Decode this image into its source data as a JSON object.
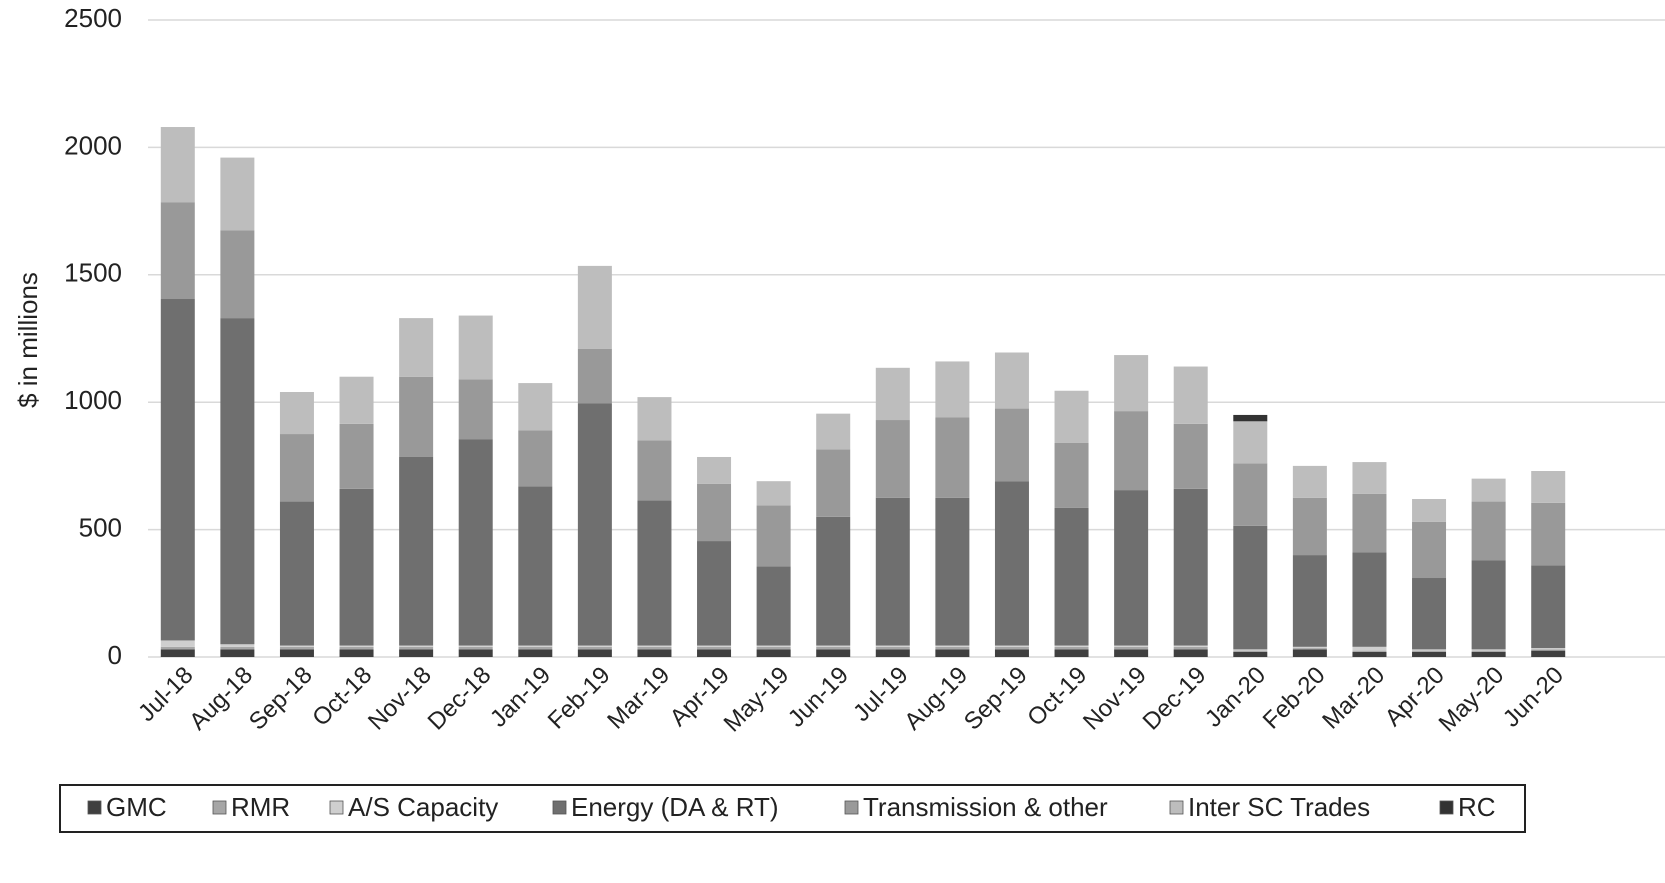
{
  "chart_data": {
    "type": "stacked_bar",
    "y_label": "$ in millions",
    "categories": [
      "Jul-18",
      "Aug-18",
      "Sep-18",
      "Oct-18",
      "Nov-18",
      "Dec-18",
      "Jan-19",
      "Feb-19",
      "Mar-19",
      "Apr-19",
      "May-19",
      "Jun-19",
      "Jul-19",
      "Aug-19",
      "Sep-19",
      "Oct-19",
      "Nov-19",
      "Dec-19",
      "Jan-20",
      "Feb-20",
      "Mar-20",
      "Apr-20",
      "May-20",
      "Jun-20"
    ],
    "series": [
      {
        "name": "GMC",
        "color": "#3f3f3f",
        "values": [
          30,
          30,
          30,
          30,
          30,
          30,
          30,
          30,
          30,
          30,
          30,
          30,
          30,
          30,
          30,
          30,
          30,
          30,
          20,
          30,
          20,
          20,
          20,
          25
        ]
      },
      {
        "name": "RMR",
        "color": "#a6a6a6",
        "values": [
          10,
          10,
          10,
          10,
          10,
          10,
          10,
          10,
          10,
          10,
          10,
          10,
          10,
          10,
          10,
          10,
          10,
          10,
          5,
          5,
          5,
          5,
          5,
          5
        ]
      },
      {
        "name": "A/S Capacity",
        "color": "#cfcfcf",
        "values": [
          25,
          10,
          5,
          5,
          5,
          5,
          5,
          5,
          5,
          5,
          5,
          5,
          5,
          5,
          5,
          5,
          5,
          5,
          5,
          5,
          15,
          5,
          5,
          5
        ]
      },
      {
        "name": "Energy (DA & RT)",
        "color": "#6f6f6f",
        "values": [
          1340,
          1280,
          565,
          615,
          740,
          810,
          625,
          950,
          570,
          410,
          310,
          505,
          580,
          580,
          645,
          540,
          610,
          615,
          485,
          360,
          370,
          280,
          350,
          325
        ]
      },
      {
        "name": "Transmission & other",
        "color": "#999999",
        "values": [
          380,
          345,
          265,
          255,
          315,
          235,
          220,
          215,
          235,
          225,
          240,
          265,
          305,
          315,
          285,
          255,
          310,
          255,
          245,
          225,
          230,
          220,
          230,
          245
        ]
      },
      {
        "name": "Inter SC Trades",
        "color": "#bdbdbd",
        "values": [
          295,
          285,
          165,
          185,
          230,
          250,
          185,
          325,
          170,
          105,
          95,
          140,
          205,
          220,
          220,
          205,
          220,
          225,
          165,
          125,
          125,
          90,
          90,
          125
        ]
      },
      {
        "name": "RC",
        "color": "#333333",
        "values": [
          0,
          0,
          0,
          0,
          0,
          0,
          0,
          0,
          0,
          0,
          0,
          0,
          0,
          0,
          0,
          0,
          0,
          0,
          25,
          0,
          0,
          0,
          0,
          0
        ]
      }
    ],
    "ylim": [
      0,
      2500
    ],
    "yticks": [
      0,
      500,
      1000,
      1500,
      2000,
      2500
    ],
    "grid": true
  }
}
